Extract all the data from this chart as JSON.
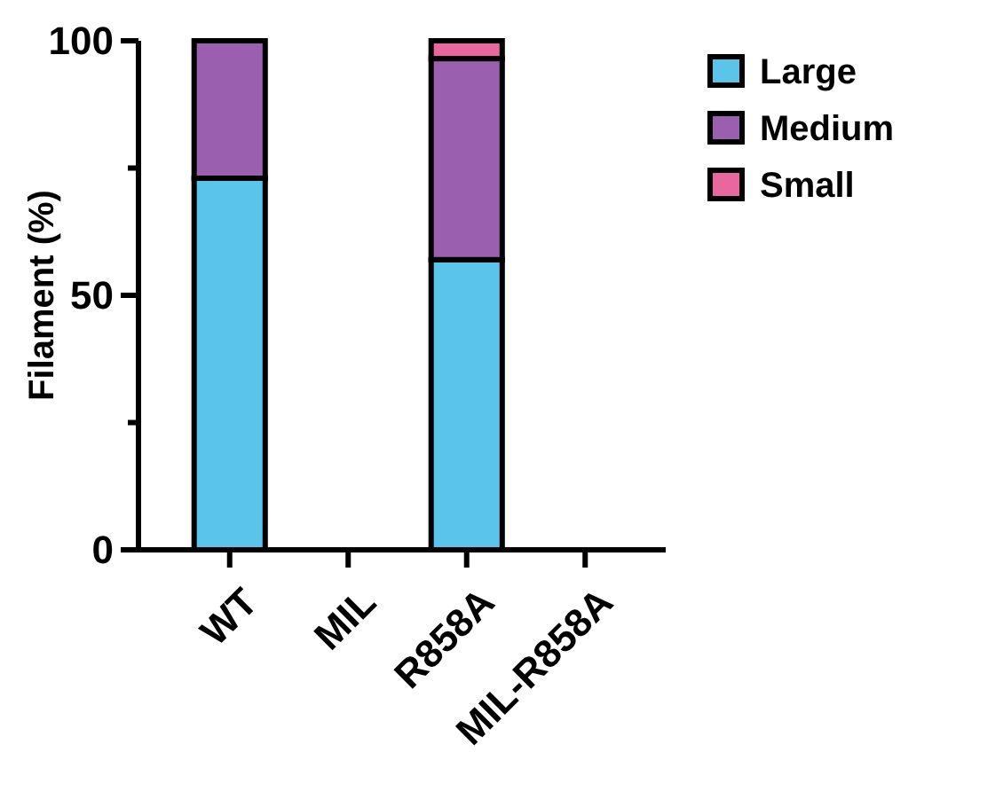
{
  "chart_data": {
    "type": "bar",
    "stacked": true,
    "ylabel": "Filament (%)",
    "categories": [
      "WT",
      "MIL",
      "R858A",
      "MIL-R858A"
    ],
    "series": [
      {
        "name": "Large",
        "color": "#5bc4ea",
        "values": [
          73,
          null,
          57,
          null
        ]
      },
      {
        "name": "Medium",
        "color": "#9b5fb0",
        "values": [
          27,
          null,
          39.5,
          null
        ]
      },
      {
        "name": "Small",
        "color": "#e8679e",
        "values": [
          null,
          null,
          3.5,
          null
        ]
      }
    ],
    "ylim": [
      0,
      100
    ],
    "yticks": [
      0,
      {
        "value": 25,
        "label": null
      },
      50,
      {
        "value": 75,
        "label": null
      },
      100
    ],
    "legend": "top right"
  }
}
